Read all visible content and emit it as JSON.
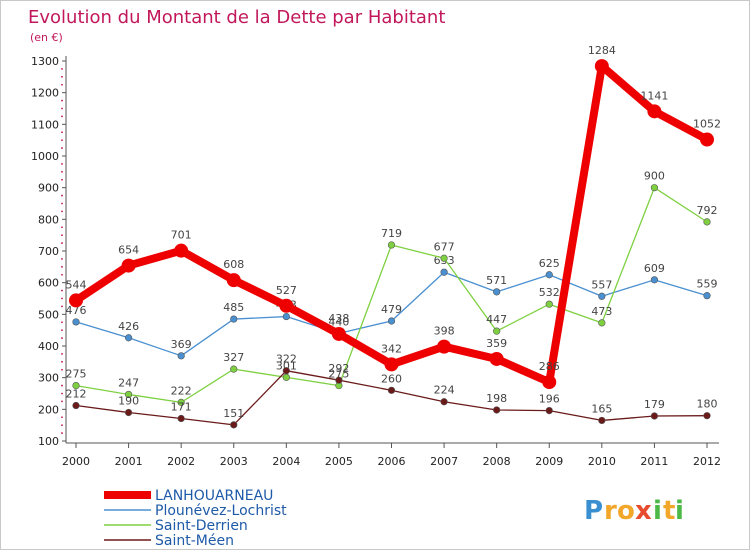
{
  "chart_data": {
    "type": "line",
    "title": "Evolution du Montant de la Dette par Habitant",
    "subtitle": "(en €)",
    "xlabel": "",
    "ylabel": "",
    "categories": [
      "2000",
      "2001",
      "2002",
      "2003",
      "2004",
      "2005",
      "2006",
      "2007",
      "2008",
      "2009",
      "2010",
      "2011",
      "2012"
    ],
    "ylim": [
      100,
      1300
    ],
    "yticks": [
      100,
      200,
      300,
      400,
      500,
      600,
      700,
      800,
      900,
      1000,
      1100,
      1200,
      1300
    ],
    "grid": false,
    "legend_position": "bottom-left",
    "series": [
      {
        "name": "LANHOUARNEAU",
        "color": "#ee0000",
        "values": [
          544,
          654,
          701,
          608,
          527,
          438,
          342,
          398,
          359,
          286,
          1284,
          1141,
          1052
        ]
      },
      {
        "name": "Plounévez-Lochrist",
        "color": "#4a90d0",
        "values": [
          476,
          426,
          369,
          485,
          493,
          440,
          479,
          633,
          571,
          625,
          557,
          609,
          559
        ]
      },
      {
        "name": "Saint-Derrien",
        "color": "#7ed040",
        "values": [
          275,
          247,
          222,
          327,
          301,
          275,
          719,
          677,
          447,
          532,
          473,
          900,
          792
        ]
      },
      {
        "name": "Saint-Méen",
        "color": "#6b1a1a",
        "values": [
          212,
          190,
          171,
          151,
          322,
          292,
          260,
          224,
          198,
          196,
          165,
          179,
          180
        ]
      }
    ]
  },
  "logo": {
    "letters": [
      "P",
      "r",
      "o",
      "x",
      "i",
      "t",
      "i"
    ],
    "colors": [
      "#3a8fd0",
      "#f2a72a",
      "#f2a72a",
      "#e84c2e",
      "#4cb848",
      "#f2a72a",
      "#4cb848"
    ]
  }
}
